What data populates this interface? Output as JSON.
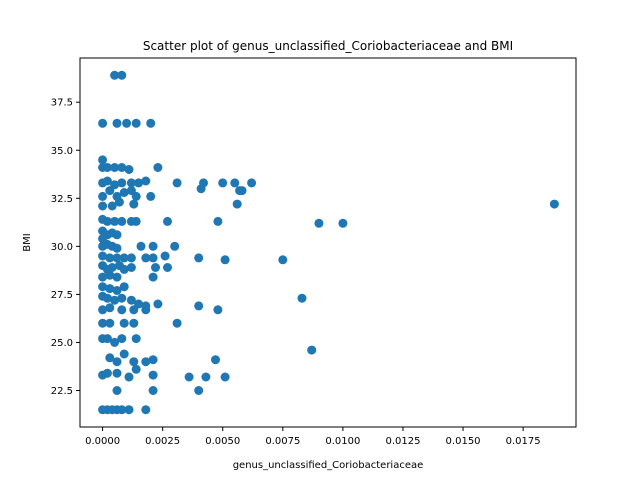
{
  "chart_data": {
    "type": "scatter",
    "title": "Scatter plot of genus_unclassified_Coriobacteriaceae and BMI",
    "xlabel": "genus_unclassified_Coriobacteriaceae",
    "ylabel": "BMI",
    "xlim": [
      -0.00094,
      0.0197
    ],
    "ylim": [
      20.6,
      39.8
    ],
    "xticks": [
      0.0,
      0.0025,
      0.005,
      0.0075,
      0.01,
      0.0125,
      0.015,
      0.0175
    ],
    "xtick_labels": [
      "0.0000",
      "0.0025",
      "0.0050",
      "0.0075",
      "0.0100",
      "0.0125",
      "0.0150",
      "0.0175"
    ],
    "yticks": [
      22.5,
      25.0,
      27.5,
      30.0,
      32.5,
      35.0,
      37.5
    ],
    "ytick_labels": [
      "22.5",
      "25.0",
      "27.5",
      "30.0",
      "32.5",
      "35.0",
      "37.5"
    ],
    "grid": false,
    "marker_color": "#1f77b4",
    "points": [
      [
        0.0005,
        38.9
      ],
      [
        0.0008,
        38.9
      ],
      [
        0.0,
        36.4
      ],
      [
        0.0006,
        36.4
      ],
      [
        0.001,
        36.4
      ],
      [
        0.0014,
        36.4
      ],
      [
        0.002,
        36.4
      ],
      [
        0.0,
        34.5
      ],
      [
        0.0,
        34.1
      ],
      [
        0.0002,
        34.1
      ],
      [
        0.0005,
        34.1
      ],
      [
        0.0008,
        34.1
      ],
      [
        0.0011,
        34.0
      ],
      [
        0.0023,
        34.1
      ],
      [
        0.0,
        33.3
      ],
      [
        0.0002,
        33.4
      ],
      [
        0.0005,
        33.2
      ],
      [
        0.0008,
        33.3
      ],
      [
        0.0012,
        33.3
      ],
      [
        0.0015,
        33.3
      ],
      [
        0.0018,
        33.4
      ],
      [
        0.0031,
        33.3
      ],
      [
        0.0041,
        33.0
      ],
      [
        0.0042,
        33.3
      ],
      [
        0.005,
        33.3
      ],
      [
        0.0055,
        33.3
      ],
      [
        0.0057,
        32.9
      ],
      [
        0.0058,
        32.9
      ],
      [
        0.0062,
        33.3
      ],
      [
        0.0,
        32.6
      ],
      [
        0.0003,
        32.9
      ],
      [
        0.0006,
        32.6
      ],
      [
        0.0009,
        32.8
      ],
      [
        0.0012,
        32.9
      ],
      [
        0.0014,
        32.6
      ],
      [
        0.002,
        32.6
      ],
      [
        0.0056,
        32.2
      ],
      [
        0.0,
        32.1
      ],
      [
        0.0004,
        32.1
      ],
      [
        0.0007,
        32.3
      ],
      [
        0.0013,
        32.2
      ],
      [
        0.0188,
        32.2
      ],
      [
        0.0,
        31.4
      ],
      [
        0.0002,
        31.3
      ],
      [
        0.0005,
        31.3
      ],
      [
        0.0008,
        31.3
      ],
      [
        0.0012,
        31.3
      ],
      [
        0.0014,
        31.3
      ],
      [
        0.0027,
        31.3
      ],
      [
        0.0048,
        31.3
      ],
      [
        0.009,
        31.2
      ],
      [
        0.01,
        31.2
      ],
      [
        0.0,
        30.8
      ],
      [
        0.0002,
        30.6
      ],
      [
        0.0004,
        30.7
      ],
      [
        0.0006,
        30.6
      ],
      [
        0.0,
        30.4
      ],
      [
        0.0,
        30.0
      ],
      [
        0.0002,
        30.1
      ],
      [
        0.0004,
        30.0
      ],
      [
        0.0006,
        29.9
      ],
      [
        0.0016,
        30.0
      ],
      [
        0.0021,
        30.0
      ],
      [
        0.003,
        30.0
      ],
      [
        0.0,
        29.5
      ],
      [
        0.0003,
        29.4
      ],
      [
        0.0006,
        29.4
      ],
      [
        0.0009,
        29.4
      ],
      [
        0.0012,
        29.4
      ],
      [
        0.0018,
        29.4
      ],
      [
        0.0021,
        29.4
      ],
      [
        0.0026,
        29.5
      ],
      [
        0.004,
        29.4
      ],
      [
        0.0051,
        29.3
      ],
      [
        0.0075,
        29.3
      ],
      [
        0.0,
        29.0
      ],
      [
        0.0002,
        28.8
      ],
      [
        0.0004,
        28.9
      ],
      [
        0.0007,
        29.0
      ],
      [
        0.0009,
        28.8
      ],
      [
        0.0012,
        28.9
      ],
      [
        0.0022,
        28.9
      ],
      [
        0.0027,
        28.9
      ],
      [
        0.0,
        28.4
      ],
      [
        0.0003,
        28.5
      ],
      [
        0.0006,
        28.4
      ],
      [
        0.0021,
        28.4
      ],
      [
        0.0,
        27.9
      ],
      [
        0.0003,
        27.8
      ],
      [
        0.0006,
        27.7
      ],
      [
        0.0009,
        27.9
      ],
      [
        0.0,
        27.4
      ],
      [
        0.0002,
        27.3
      ],
      [
        0.0005,
        27.2
      ],
      [
        0.0008,
        27.3
      ],
      [
        0.0012,
        27.2
      ],
      [
        0.0015,
        27.0
      ],
      [
        0.0018,
        26.9
      ],
      [
        0.0023,
        27.0
      ],
      [
        0.004,
        26.9
      ],
      [
        0.0083,
        27.3
      ],
      [
        0.0,
        26.7
      ],
      [
        0.0003,
        26.8
      ],
      [
        0.0008,
        26.7
      ],
      [
        0.0013,
        26.7
      ],
      [
        0.0018,
        26.7
      ],
      [
        0.0048,
        26.7
      ],
      [
        0.0,
        26.0
      ],
      [
        0.0003,
        26.0
      ],
      [
        0.0009,
        26.0
      ],
      [
        0.0013,
        26.0
      ],
      [
        0.0031,
        26.0
      ],
      [
        0.0,
        25.2
      ],
      [
        0.0002,
        25.2
      ],
      [
        0.0005,
        25.0
      ],
      [
        0.0008,
        25.2
      ],
      [
        0.0014,
        25.2
      ],
      [
        0.0087,
        24.6
      ],
      [
        0.0003,
        24.2
      ],
      [
        0.0006,
        24.0
      ],
      [
        0.0009,
        24.4
      ],
      [
        0.0013,
        24.0
      ],
      [
        0.0018,
        24.0
      ],
      [
        0.0021,
        24.1
      ],
      [
        0.0047,
        24.1
      ],
      [
        0.0,
        23.3
      ],
      [
        0.0002,
        23.4
      ],
      [
        0.0006,
        23.4
      ],
      [
        0.0011,
        23.2
      ],
      [
        0.0014,
        23.6
      ],
      [
        0.0021,
        23.3
      ],
      [
        0.0036,
        23.2
      ],
      [
        0.0043,
        23.2
      ],
      [
        0.0051,
        23.2
      ],
      [
        0.0006,
        22.5
      ],
      [
        0.0021,
        22.5
      ],
      [
        0.004,
        22.5
      ],
      [
        0.0,
        21.5
      ],
      [
        0.0002,
        21.5
      ],
      [
        0.0004,
        21.5
      ],
      [
        0.0006,
        21.5
      ],
      [
        0.0008,
        21.5
      ],
      [
        0.0011,
        21.5
      ],
      [
        0.0018,
        21.5
      ]
    ]
  }
}
